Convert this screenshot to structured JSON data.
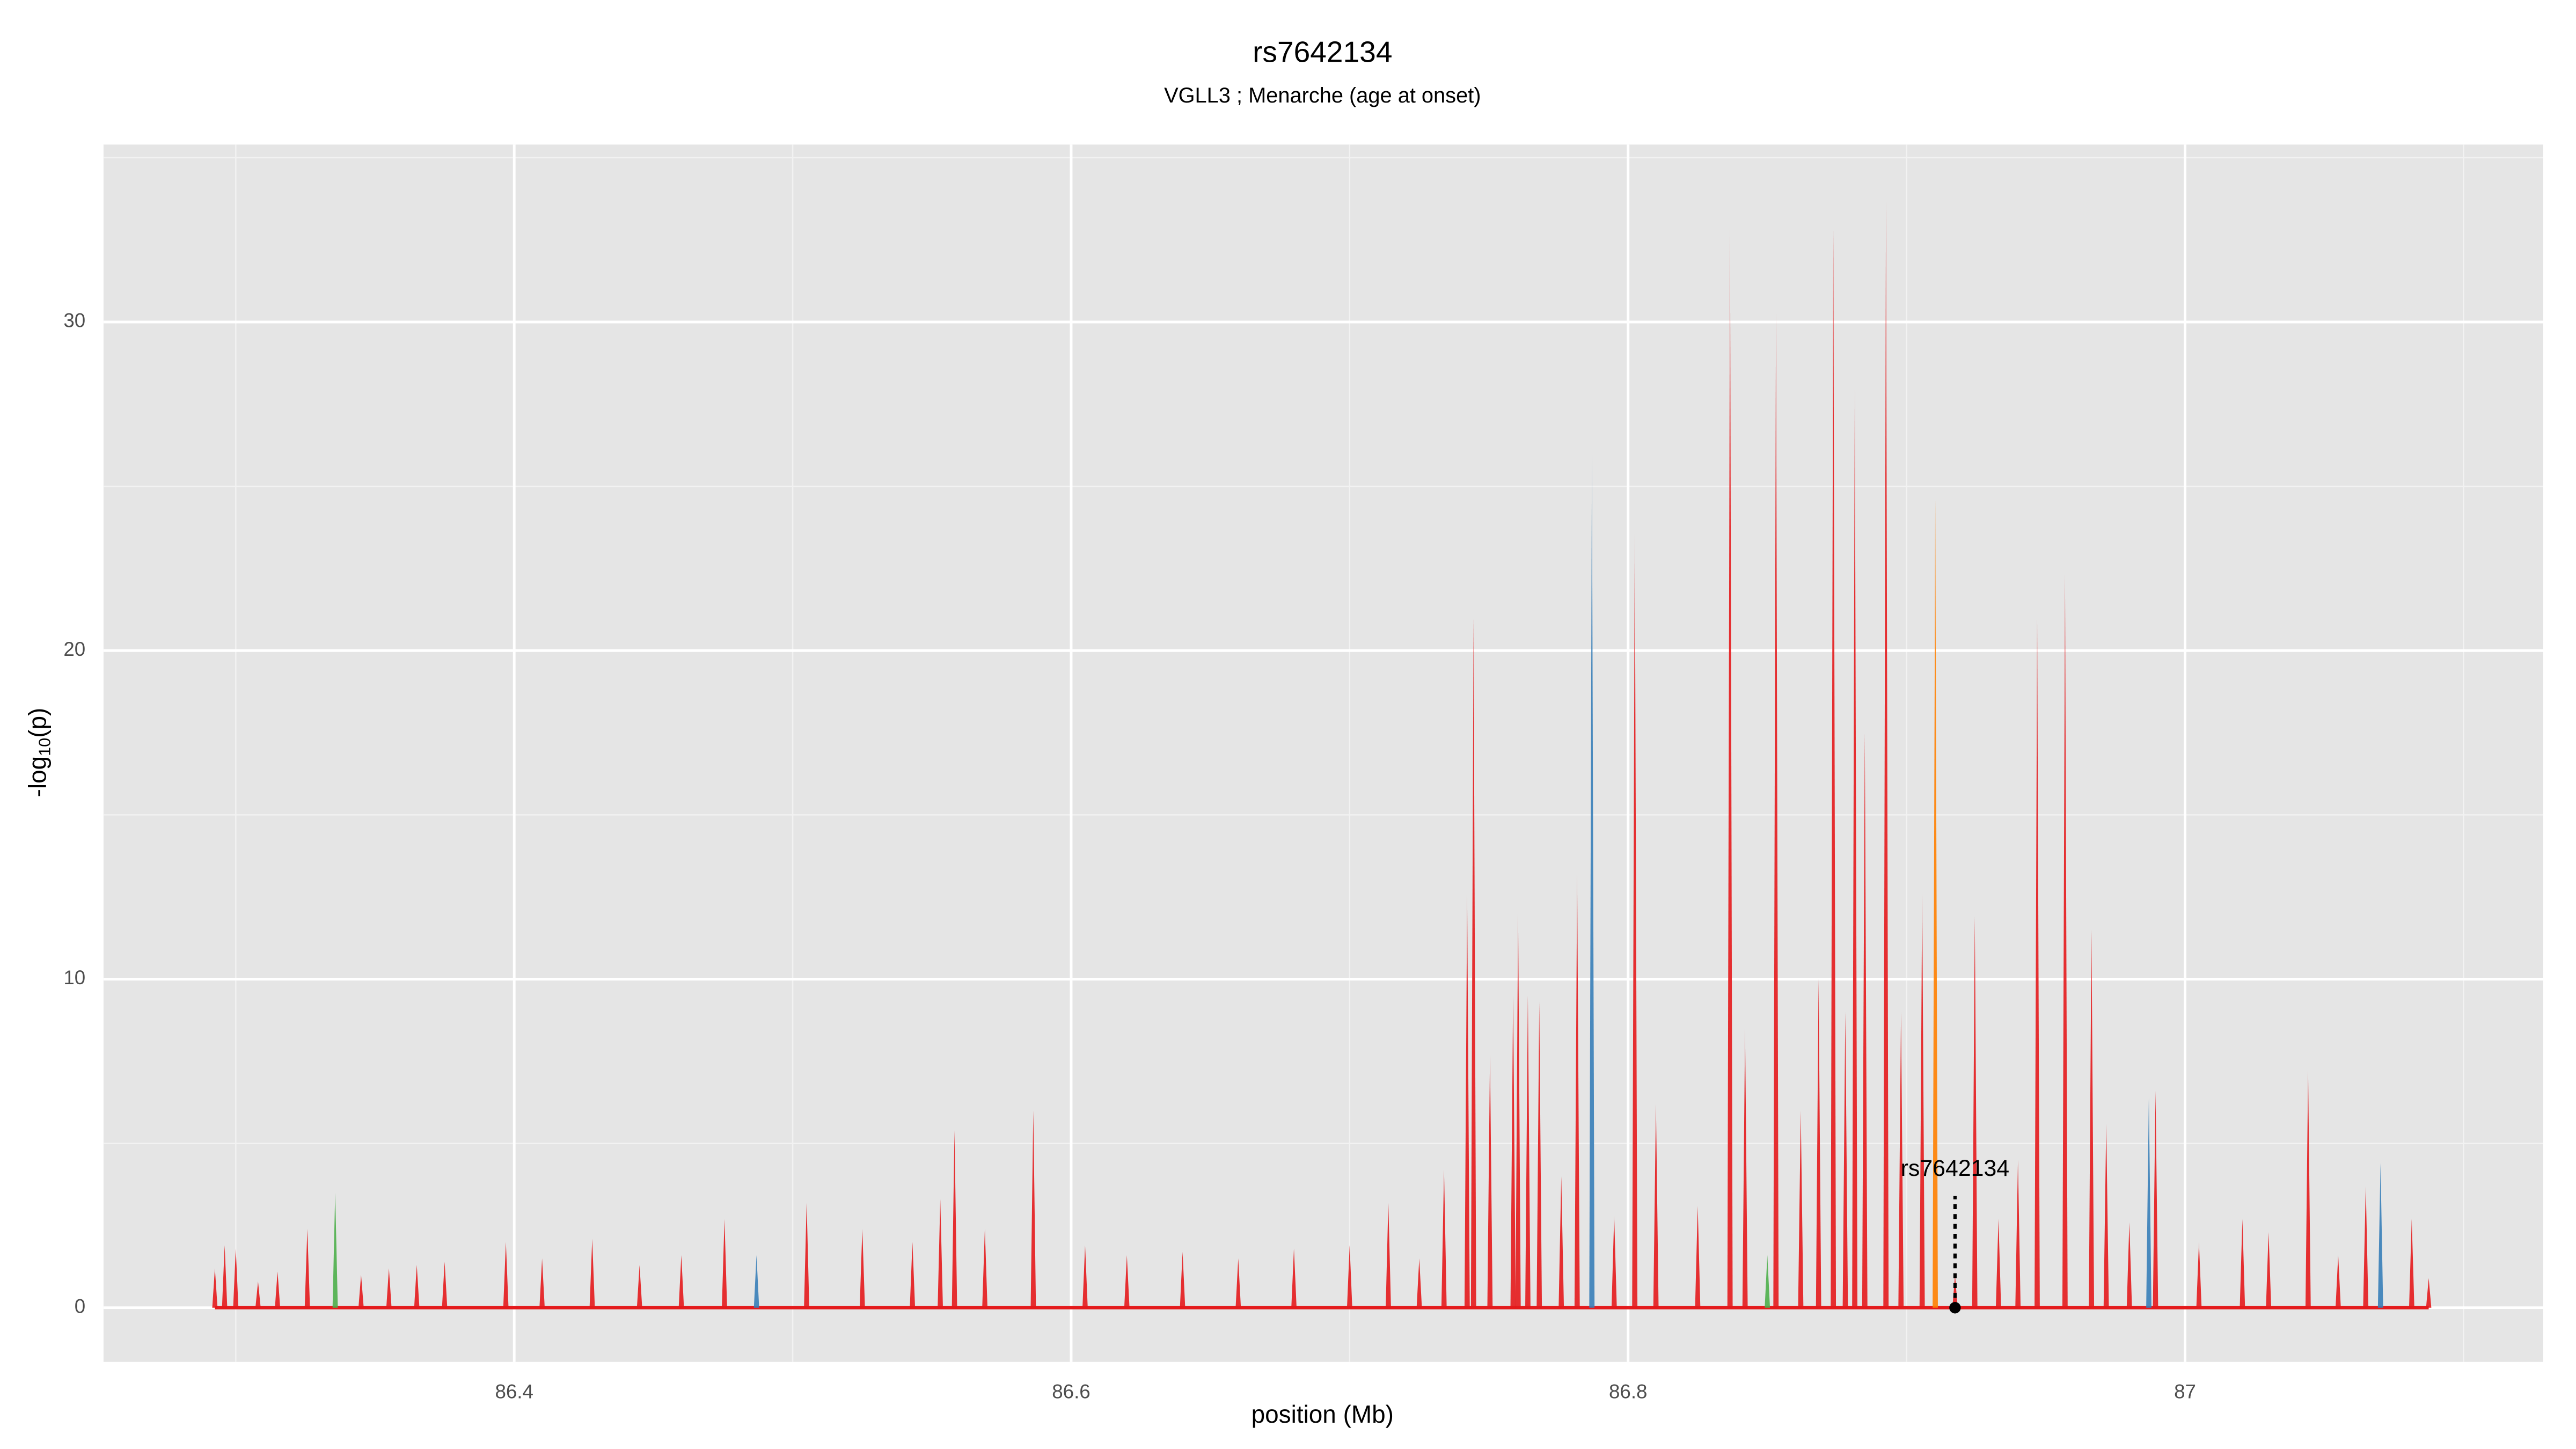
{
  "chart_data": {
    "type": "spike",
    "title": "rs7642134",
    "subtitle": "VGLL3 ; Menarche (age at onset)",
    "xlabel": "position (Mb)",
    "ylabel_parts": [
      "-log",
      "10",
      "(p)"
    ],
    "xlim": [
      86.2525,
      87.1286
    ],
    "ylim": [
      -1.65,
      35.4
    ],
    "xticks": [
      86.4,
      86.6,
      86.8,
      87.0
    ],
    "yticks": [
      0,
      10,
      20,
      30
    ],
    "grid": true,
    "x": [
      86.2925,
      86.296,
      86.3,
      86.308,
      86.315,
      86.3257,
      86.3357,
      86.345,
      86.355,
      86.365,
      86.375,
      86.397,
      86.41,
      86.428,
      86.445,
      86.46,
      86.4755,
      86.487,
      86.505,
      86.525,
      86.543,
      86.553,
      86.5581,
      86.569,
      86.5864,
      86.605,
      86.62,
      86.64,
      86.66,
      86.68,
      86.7,
      86.7139,
      86.725,
      86.7339,
      86.7422,
      86.7445,
      86.7504,
      86.7587,
      86.7605,
      86.764,
      86.7681,
      86.776,
      86.7817,
      86.787,
      86.795,
      86.8024,
      86.81,
      86.825,
      86.8366,
      86.842,
      86.85,
      86.8531,
      86.862,
      86.8684,
      86.8737,
      86.878,
      86.8814,
      86.885,
      86.8926,
      86.898,
      86.9056,
      86.9103,
      86.9174,
      86.9245,
      86.933,
      86.94,
      86.9469,
      86.9569,
      86.9664,
      86.9717,
      86.98,
      86.987,
      86.9894,
      87.005,
      87.0206,
      87.03,
      87.0442,
      87.055,
      87.0649,
      87.0702,
      87.0814,
      87.0875
    ],
    "values": [
      1.2,
      1.9,
      1.8,
      0.8,
      1.1,
      2.4,
      3.5,
      1.0,
      1.2,
      1.3,
      1.4,
      2.0,
      1.5,
      2.1,
      1.3,
      1.6,
      2.7,
      1.6,
      3.2,
      2.4,
      2.0,
      3.3,
      5.4,
      2.4,
      6.0,
      1.9,
      1.6,
      1.7,
      1.5,
      1.8,
      1.9,
      3.2,
      1.5,
      4.2,
      12.6,
      21.0,
      7.7,
      9.5,
      12.0,
      9.5,
      9.3,
      4.0,
      13.2,
      26.0,
      2.8,
      23.6,
      6.2,
      3.1,
      32.8,
      8.5,
      1.6,
      30.3,
      6.0,
      10.0,
      32.8,
      9.0,
      28.0,
      17.5,
      33.7,
      9.0,
      12.6,
      24.6,
      1.0,
      11.9,
      2.7,
      4.5,
      21.0,
      22.3,
      11.5,
      5.6,
      2.6,
      6.4,
      6.6,
      2.0,
      2.7,
      2.3,
      7.2,
      1.6,
      3.7,
      4.4,
      2.7,
      0.9
    ],
    "colors": [
      "#e41a1c",
      "#e41a1c",
      "#e41a1c",
      "#e41a1c",
      "#e41a1c",
      "#e41a1c",
      "#4daf4a",
      "#e41a1c",
      "#e41a1c",
      "#e41a1c",
      "#e41a1c",
      "#e41a1c",
      "#e41a1c",
      "#e41a1c",
      "#e41a1c",
      "#e41a1c",
      "#e41a1c",
      "#377eb8",
      "#e41a1c",
      "#e41a1c",
      "#e41a1c",
      "#e41a1c",
      "#e41a1c",
      "#e41a1c",
      "#e41a1c",
      "#e41a1c",
      "#e41a1c",
      "#e41a1c",
      "#e41a1c",
      "#e41a1c",
      "#e41a1c",
      "#e41a1c",
      "#e41a1c",
      "#e41a1c",
      "#e41a1c",
      "#e41a1c",
      "#e41a1c",
      "#e41a1c",
      "#e41a1c",
      "#e41a1c",
      "#e41a1c",
      "#e41a1c",
      "#e41a1c",
      "#377eb8",
      "#e41a1c",
      "#e41a1c",
      "#e41a1c",
      "#e41a1c",
      "#e41a1c",
      "#e41a1c",
      "#4daf4a",
      "#e41a1c",
      "#e41a1c",
      "#e41a1c",
      "#e41a1c",
      "#e41a1c",
      "#e41a1c",
      "#e41a1c",
      "#e41a1c",
      "#e41a1c",
      "#e41a1c",
      "#ff7f00",
      "#e41a1c",
      "#e41a1c",
      "#e41a1c",
      "#e41a1c",
      "#e41a1c",
      "#e41a1c",
      "#e41a1c",
      "#e41a1c",
      "#e41a1c",
      "#377eb8",
      "#e41a1c",
      "#e41a1c",
      "#e41a1c",
      "#e41a1c",
      "#e41a1c",
      "#e41a1c",
      "#e41a1c",
      "#377eb8",
      "#e41a1c",
      "#e41a1c"
    ],
    "baseline_color": "#e41a1c",
    "annotation": {
      "label": "rs7642134",
      "x": 86.9174,
      "y": 0
    }
  }
}
